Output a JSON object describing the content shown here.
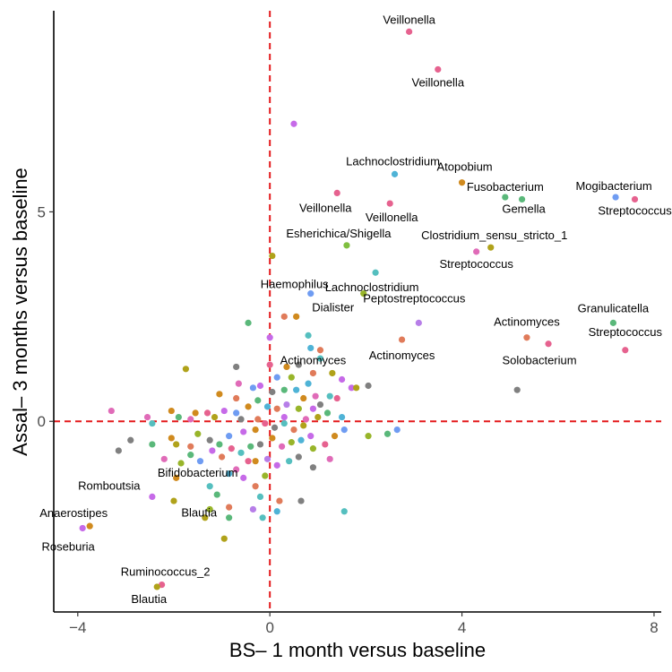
{
  "chart_data": {
    "type": "scatter",
    "xlabel": "BS– 1 month versus baseline",
    "ylabel": "Assal– 3 months versus baseline",
    "xlim": [
      -4.5,
      8.15
    ],
    "ylim": [
      -4.55,
      9.8
    ],
    "x_ticks": [
      -4,
      0,
      4,
      8
    ],
    "y_ticks": [
      0,
      5
    ],
    "x_tick_labels": [
      "−4",
      "0",
      "4",
      "8"
    ],
    "y_tick_labels": [
      "0",
      "5"
    ],
    "grid": false,
    "legend": "none",
    "reference_lines": [
      {
        "axis": "x",
        "value": 0,
        "style": "dashed",
        "color": "#e41a1c"
      },
      {
        "axis": "y",
        "value": 0,
        "style": "dashed",
        "color": "#e41a1c"
      }
    ],
    "labeled_points": [
      {
        "x": 2.9,
        "y": 9.3,
        "label": "Veillonella",
        "color": "#e6628f"
      },
      {
        "x": 3.5,
        "y": 8.4,
        "label": "Veillonella",
        "color": "#e6628f"
      },
      {
        "x": 2.6,
        "y": 5.9,
        "label": "Lachnoclostridium",
        "color": "#4fb3d6"
      },
      {
        "x": 4.0,
        "y": 5.7,
        "label": "Atopobium",
        "color": "#d08a1e"
      },
      {
        "x": 4.9,
        "y": 5.35,
        "label": "Fusobacterium",
        "color": "#5ab87a"
      },
      {
        "x": 5.25,
        "y": 5.3,
        "label": "Gemella",
        "color": "#5ab87a"
      },
      {
        "x": 7.2,
        "y": 5.35,
        "label": "Mogibacterium",
        "color": "#6f9cf2"
      },
      {
        "x": 7.6,
        "y": 5.3,
        "label": "Streptococcus",
        "color": "#e6628f"
      },
      {
        "x": 1.4,
        "y": 5.45,
        "label": "Veillonella",
        "color": "#e6628f"
      },
      {
        "x": 2.5,
        "y": 5.2,
        "label": "Veillonella",
        "color": "#e6628f"
      },
      {
        "x": 1.6,
        "y": 4.2,
        "label": "Esherichica/Shigella",
        "color": "#7fbf3f"
      },
      {
        "x": 4.6,
        "y": 4.15,
        "label": "Clostridium_sensu_stricto_1",
        "color": "#b0a21a"
      },
      {
        "x": 4.3,
        "y": 4.05,
        "label": "Streptococcus",
        "color": "#e06bb8"
      },
      {
        "x": 2.2,
        "y": 3.55,
        "label": "Lachnoclostridium",
        "color": "#55bfbf"
      },
      {
        "x": 0.85,
        "y": 3.05,
        "label": "Haemophilus",
        "color": "#6f9cf2"
      },
      {
        "x": 1.95,
        "y": 3.05,
        "label": "Dialister",
        "color": "#98b52a"
      },
      {
        "x": 3.1,
        "y": 2.35,
        "label": "Peptostreptococcus",
        "color": "#b77ee8"
      },
      {
        "x": 2.75,
        "y": 1.95,
        "label": "Actinomyces",
        "color": "#e07b5a"
      },
      {
        "x": 5.35,
        "y": 2.0,
        "label": "Actinomyces",
        "color": "#e07b5a"
      },
      {
        "x": 7.15,
        "y": 2.35,
        "label": "Granulicatella",
        "color": "#5ab87a"
      },
      {
        "x": 7.4,
        "y": 1.7,
        "label": "Streptococcus",
        "color": "#e6628f"
      },
      {
        "x": 5.8,
        "y": 1.85,
        "label": "Solobacterium",
        "color": "#e6628f"
      },
      {
        "x": 0.9,
        "y": 1.15,
        "label": "Actinomyces",
        "color": "#e07b5a"
      },
      {
        "x": -0.7,
        "y": -1.15,
        "label": "Bifidobacterium",
        "color": "#e06bb8"
      },
      {
        "x": -2.45,
        "y": -1.8,
        "label": "Romboutsia",
        "color": "#c66ae8"
      },
      {
        "x": -3.75,
        "y": -2.5,
        "label": "Anaerostipes",
        "color": "#d08a1e"
      },
      {
        "x": -3.9,
        "y": -2.55,
        "label": "Roseburia",
        "color": "#c66ae8"
      },
      {
        "x": -1.25,
        "y": -2.1,
        "label": "Blautia",
        "color": "#98b52a"
      },
      {
        "x": -2.25,
        "y": -3.9,
        "label": "Ruminococcus_2",
        "color": "#e6628f"
      },
      {
        "x": -2.35,
        "y": -3.95,
        "label": "Blautia",
        "color": "#b0a21a"
      }
    ],
    "points": [
      {
        "x": 0.5,
        "y": 7.1,
        "color": "#c66ae8"
      },
      {
        "x": 0.05,
        "y": 3.95,
        "color": "#b0a21a"
      },
      {
        "x": 0.3,
        "y": 2.5,
        "color": "#e07b5a"
      },
      {
        "x": 0.55,
        "y": 2.5,
        "color": "#d08a1e"
      },
      {
        "x": -0.45,
        "y": 2.35,
        "color": "#5ab87a"
      },
      {
        "x": 0.8,
        "y": 2.05,
        "color": "#55bfbf"
      },
      {
        "x": 0.0,
        "y": 2.0,
        "color": "#c66ae8"
      },
      {
        "x": 0.85,
        "y": 1.75,
        "color": "#4fb3d6"
      },
      {
        "x": 1.05,
        "y": 1.5,
        "color": "#55bfbf"
      },
      {
        "x": 1.05,
        "y": 1.7,
        "color": "#e07b5a"
      },
      {
        "x": 0.0,
        "y": 1.35,
        "color": "#e6628f"
      },
      {
        "x": 0.35,
        "y": 1.3,
        "color": "#d08a1e"
      },
      {
        "x": -1.75,
        "y": 1.25,
        "color": "#b0a21a"
      },
      {
        "x": -0.7,
        "y": 1.3,
        "color": "#808080"
      },
      {
        "x": 0.6,
        "y": 1.35,
        "color": "#808080"
      },
      {
        "x": 1.3,
        "y": 1.15,
        "color": "#b0a21a"
      },
      {
        "x": 1.5,
        "y": 1.0,
        "color": "#c66ae8"
      },
      {
        "x": 2.05,
        "y": 0.85,
        "color": "#808080"
      },
      {
        "x": 1.7,
        "y": 0.8,
        "color": "#c66ae8"
      },
      {
        "x": 1.8,
        "y": 0.8,
        "color": "#b0a21a"
      },
      {
        "x": 5.15,
        "y": 0.75,
        "color": "#808080"
      },
      {
        "x": 0.8,
        "y": 0.9,
        "color": "#4fb3d6"
      },
      {
        "x": 0.45,
        "y": 1.05,
        "color": "#98b52a"
      },
      {
        "x": 0.15,
        "y": 1.05,
        "color": "#6f9cf2"
      },
      {
        "x": -0.35,
        "y": 0.8,
        "color": "#6f9cf2"
      },
      {
        "x": -0.7,
        "y": 0.55,
        "color": "#e07b5a"
      },
      {
        "x": -1.05,
        "y": 0.65,
        "color": "#d08a1e"
      },
      {
        "x": -0.65,
        "y": 0.9,
        "color": "#e06bb8"
      },
      {
        "x": -0.2,
        "y": 0.85,
        "color": "#c66ae8"
      },
      {
        "x": 0.05,
        "y": 0.7,
        "color": "#808080"
      },
      {
        "x": 0.3,
        "y": 0.75,
        "color": "#5ab87a"
      },
      {
        "x": 0.55,
        "y": 0.75,
        "color": "#4fb3d6"
      },
      {
        "x": 0.7,
        "y": 0.55,
        "color": "#d08a1e"
      },
      {
        "x": 0.95,
        "y": 0.6,
        "color": "#e06bb8"
      },
      {
        "x": 1.05,
        "y": 0.4,
        "color": "#808080"
      },
      {
        "x": 1.25,
        "y": 0.6,
        "color": "#55bfbf"
      },
      {
        "x": 1.4,
        "y": 0.55,
        "color": "#e6628f"
      },
      {
        "x": 0.9,
        "y": 0.3,
        "color": "#c66ae8"
      },
      {
        "x": 0.6,
        "y": 0.3,
        "color": "#98b52a"
      },
      {
        "x": 0.35,
        "y": 0.4,
        "color": "#b77ee8"
      },
      {
        "x": 0.15,
        "y": 0.3,
        "color": "#e07b5a"
      },
      {
        "x": -0.05,
        "y": 0.35,
        "color": "#4fb3d6"
      },
      {
        "x": -0.25,
        "y": 0.5,
        "color": "#5ab87a"
      },
      {
        "x": -0.45,
        "y": 0.35,
        "color": "#d08a1e"
      },
      {
        "x": -0.7,
        "y": 0.2,
        "color": "#6f9cf2"
      },
      {
        "x": -0.95,
        "y": 0.25,
        "color": "#c66ae8"
      },
      {
        "x": -1.15,
        "y": 0.1,
        "color": "#b0a21a"
      },
      {
        "x": -1.3,
        "y": 0.2,
        "color": "#e6628f"
      },
      {
        "x": -1.55,
        "y": 0.2,
        "color": "#d08a1e"
      },
      {
        "x": -1.65,
        "y": 0.05,
        "color": "#e06bb8"
      },
      {
        "x": -1.9,
        "y": 0.1,
        "color": "#5ab87a"
      },
      {
        "x": -2.05,
        "y": 0.25,
        "color": "#d08a1e"
      },
      {
        "x": -2.45,
        "y": -0.05,
        "color": "#55bfbf"
      },
      {
        "x": -2.55,
        "y": 0.1,
        "color": "#e06bb8"
      },
      {
        "x": -3.3,
        "y": 0.25,
        "color": "#e06bb8"
      },
      {
        "x": -2.45,
        "y": -0.55,
        "color": "#5ab87a"
      },
      {
        "x": -3.15,
        "y": -0.7,
        "color": "#808080"
      },
      {
        "x": -2.9,
        "y": -0.45,
        "color": "#808080"
      },
      {
        "x": -2.05,
        "y": -0.4,
        "color": "#d08a1e"
      },
      {
        "x": -1.95,
        "y": -0.55,
        "color": "#b0a21a"
      },
      {
        "x": -1.65,
        "y": -0.6,
        "color": "#e07b5a"
      },
      {
        "x": -1.5,
        "y": -0.3,
        "color": "#98b52a"
      },
      {
        "x": -1.25,
        "y": -0.45,
        "color": "#808080"
      },
      {
        "x": -1.05,
        "y": -0.55,
        "color": "#5ab87a"
      },
      {
        "x": -0.85,
        "y": -0.35,
        "color": "#6f9cf2"
      },
      {
        "x": -0.55,
        "y": -0.25,
        "color": "#c66ae8"
      },
      {
        "x": -0.3,
        "y": -0.2,
        "color": "#d08a1e"
      },
      {
        "x": -0.1,
        "y": -0.05,
        "color": "#e6628f"
      },
      {
        "x": 0.1,
        "y": -0.15,
        "color": "#808080"
      },
      {
        "x": 0.3,
        "y": -0.05,
        "color": "#55bfbf"
      },
      {
        "x": 0.5,
        "y": -0.2,
        "color": "#e07b5a"
      },
      {
        "x": 0.7,
        "y": -0.1,
        "color": "#b0a21a"
      },
      {
        "x": 0.85,
        "y": -0.35,
        "color": "#c66ae8"
      },
      {
        "x": 0.65,
        "y": -0.45,
        "color": "#4fb3d6"
      },
      {
        "x": 0.45,
        "y": -0.5,
        "color": "#98b52a"
      },
      {
        "x": 0.25,
        "y": -0.6,
        "color": "#e06bb8"
      },
      {
        "x": 0.05,
        "y": -0.4,
        "color": "#d08a1e"
      },
      {
        "x": -0.2,
        "y": -0.55,
        "color": "#808080"
      },
      {
        "x": -0.4,
        "y": -0.6,
        "color": "#5ab87a"
      },
      {
        "x": -0.6,
        "y": -0.75,
        "color": "#55bfbf"
      },
      {
        "x": -0.8,
        "y": -0.65,
        "color": "#e6628f"
      },
      {
        "x": -1.0,
        "y": -0.85,
        "color": "#e07b5a"
      },
      {
        "x": -1.2,
        "y": -0.7,
        "color": "#c66ae8"
      },
      {
        "x": -1.45,
        "y": -0.95,
        "color": "#6f9cf2"
      },
      {
        "x": -1.65,
        "y": -0.8,
        "color": "#5ab87a"
      },
      {
        "x": -1.85,
        "y": -1.0,
        "color": "#98b52a"
      },
      {
        "x": -2.2,
        "y": -0.9,
        "color": "#e06bb8"
      },
      {
        "x": -1.95,
        "y": -1.35,
        "color": "#d08a1e"
      },
      {
        "x": -0.3,
        "y": -0.95,
        "color": "#d08a1e"
      },
      {
        "x": -0.05,
        "y": -0.9,
        "color": "#b77ee8"
      },
      {
        "x": 0.15,
        "y": -1.05,
        "color": "#c66ae8"
      },
      {
        "x": 0.4,
        "y": -0.95,
        "color": "#55bfbf"
      },
      {
        "x": 0.6,
        "y": -0.85,
        "color": "#808080"
      },
      {
        "x": 0.9,
        "y": -0.65,
        "color": "#98b52a"
      },
      {
        "x": 1.15,
        "y": -0.55,
        "color": "#e6628f"
      },
      {
        "x": 1.35,
        "y": -0.35,
        "color": "#d08a1e"
      },
      {
        "x": 1.55,
        "y": -0.2,
        "color": "#6f9cf2"
      },
      {
        "x": 2.05,
        "y": -0.35,
        "color": "#98b52a"
      },
      {
        "x": 2.45,
        "y": -0.3,
        "color": "#5ab87a"
      },
      {
        "x": 2.65,
        "y": -0.2,
        "color": "#6f9cf2"
      },
      {
        "x": 1.25,
        "y": -0.9,
        "color": "#e06bb8"
      },
      {
        "x": 0.9,
        "y": -1.1,
        "color": "#808080"
      },
      {
        "x": -0.1,
        "y": -1.3,
        "color": "#98b52a"
      },
      {
        "x": -0.3,
        "y": -1.55,
        "color": "#e07b5a"
      },
      {
        "x": -0.55,
        "y": -1.35,
        "color": "#c66ae8"
      },
      {
        "x": -0.85,
        "y": -1.25,
        "color": "#4fb3d6"
      },
      {
        "x": -1.25,
        "y": -1.55,
        "color": "#55bfbf"
      },
      {
        "x": -1.1,
        "y": -1.75,
        "color": "#5ab87a"
      },
      {
        "x": -0.2,
        "y": -1.8,
        "color": "#55bfbf"
      },
      {
        "x": 0.2,
        "y": -1.9,
        "color": "#e07b5a"
      },
      {
        "x": 0.65,
        "y": -1.9,
        "color": "#808080"
      },
      {
        "x": -0.35,
        "y": -2.1,
        "color": "#b77ee8"
      },
      {
        "x": -0.85,
        "y": -2.05,
        "color": "#e07b5a"
      },
      {
        "x": -2.0,
        "y": -1.9,
        "color": "#b0a21a"
      },
      {
        "x": -0.15,
        "y": -2.3,
        "color": "#55bfbf"
      },
      {
        "x": 0.15,
        "y": -2.15,
        "color": "#4fb3d6"
      },
      {
        "x": -0.85,
        "y": -2.3,
        "color": "#5ab87a"
      },
      {
        "x": -1.35,
        "y": -2.3,
        "color": "#b0a21a"
      },
      {
        "x": -0.95,
        "y": -2.8,
        "color": "#b0a21a"
      },
      {
        "x": -0.45,
        "y": -0.95,
        "color": "#e6628f"
      },
      {
        "x": 1.0,
        "y": 0.1,
        "color": "#b0a21a"
      },
      {
        "x": 1.2,
        "y": 0.2,
        "color": "#5ab87a"
      },
      {
        "x": 1.5,
        "y": 0.1,
        "color": "#4fb3d6"
      },
      {
        "x": 0.3,
        "y": 0.1,
        "color": "#c66ae8"
      },
      {
        "x": -0.6,
        "y": 0.05,
        "color": "#808080"
      },
      {
        "x": -0.25,
        "y": 0.05,
        "color": "#e07b5a"
      },
      {
        "x": 0.75,
        "y": 0.05,
        "color": "#e06bb8"
      },
      {
        "x": 1.55,
        "y": -2.15,
        "color": "#55bfbf"
      }
    ]
  }
}
